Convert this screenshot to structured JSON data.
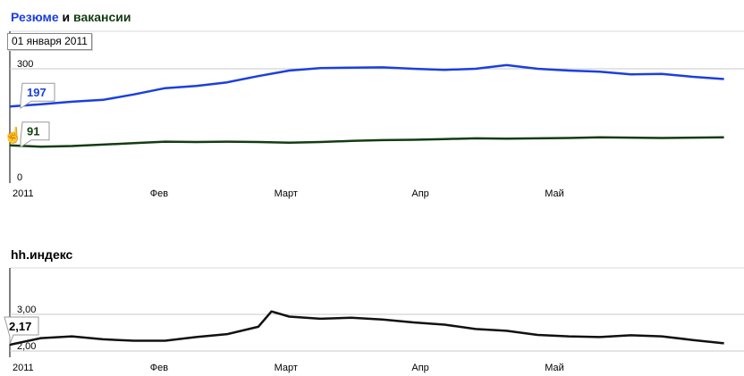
{
  "titles": {
    "chart1": {
      "part1": "Резюме",
      "part2": " и ",
      "part3": "вакансии"
    },
    "chart2": "hh.индекс"
  },
  "date_box": "01 января 2011",
  "icons": {
    "cursor": "hand-pointer-icon"
  },
  "colors": {
    "resumes": "#1b3fe0",
    "vacancies": "#123d12",
    "index": "#111111",
    "grid": "#c8c8c8"
  },
  "chart_data": [
    {
      "type": "line",
      "x": [
        "2011-01-01",
        "2011-01-08",
        "2011-01-15",
        "2011-01-22",
        "2011-01-29",
        "2011-02-05",
        "2011-02-12",
        "2011-02-19",
        "2011-02-26",
        "2011-03-05",
        "2011-03-12",
        "2011-03-19",
        "2011-03-26",
        "2011-04-02",
        "2011-04-09",
        "2011-04-16",
        "2011-04-23",
        "2011-04-30",
        "2011-05-07",
        "2011-05-14",
        "2011-05-21",
        "2011-05-28",
        "2011-06-04",
        "2011-06-11"
      ],
      "xticks": [
        {
          "label": "2011",
          "date": "2011-01-01"
        },
        {
          "label": "Фев",
          "date": "2011-02-01"
        },
        {
          "label": "Март",
          "date": "2011-03-01"
        },
        {
          "label": "Апр",
          "date": "2011-04-01"
        },
        {
          "label": "Май",
          "date": "2011-05-01"
        }
      ],
      "yticks": [
        "0",
        "300"
      ],
      "ylim": [
        0,
        300
      ],
      "grid": true,
      "series": [
        {
          "name": "Резюме",
          "color": "#1b3fe0",
          "values": [
            197,
            203,
            210,
            215,
            230,
            247,
            253,
            263,
            280,
            295,
            302,
            303,
            304,
            300,
            297,
            300,
            310,
            300,
            295,
            292,
            285,
            286,
            278,
            272
          ]
        },
        {
          "name": "вакансии",
          "color": "#123d12",
          "values": [
            91,
            87,
            89,
            93,
            97,
            101,
            100,
            101,
            100,
            98,
            100,
            103,
            105,
            106,
            108,
            110,
            109,
            110,
            111,
            113,
            112,
            111,
            112,
            113
          ]
        }
      ],
      "markers": [
        {
          "series": "Резюме",
          "label": "197"
        },
        {
          "series": "вакансии",
          "label": "91"
        }
      ]
    },
    {
      "type": "line",
      "x": [
        "2011-01-01",
        "2011-01-08",
        "2011-01-15",
        "2011-01-22",
        "2011-01-29",
        "2011-02-05",
        "2011-02-12",
        "2011-02-19",
        "2011-02-26",
        "2011-03-01",
        "2011-03-05",
        "2011-03-12",
        "2011-03-19",
        "2011-03-26",
        "2011-04-02",
        "2011-04-09",
        "2011-04-16",
        "2011-04-23",
        "2011-04-30",
        "2011-05-07",
        "2011-05-14",
        "2011-05-21",
        "2011-05-28",
        "2011-06-04",
        "2011-06-11"
      ],
      "xticks": [
        {
          "label": "2011",
          "date": "2011-01-01"
        },
        {
          "label": "Фев",
          "date": "2011-02-01"
        },
        {
          "label": "Март",
          "date": "2011-03-01"
        },
        {
          "label": "Апр",
          "date": "2011-04-01"
        },
        {
          "label": "Май",
          "date": "2011-05-01"
        }
      ],
      "yticks": [
        "2,00",
        "3,00"
      ],
      "ylim": [
        1.9,
        3.3
      ],
      "grid": true,
      "series": [
        {
          "name": "hh.индекс",
          "color": "#111111",
          "values": [
            2.17,
            2.35,
            2.4,
            2.32,
            2.28,
            2.28,
            2.38,
            2.46,
            2.66,
            3.08,
            2.94,
            2.88,
            2.91,
            2.86,
            2.78,
            2.72,
            2.6,
            2.55,
            2.44,
            2.4,
            2.38,
            2.43,
            2.4,
            2.3,
            2.21
          ]
        }
      ],
      "markers": [
        {
          "series": "hh.индекс",
          "label": "2,17"
        }
      ]
    }
  ]
}
